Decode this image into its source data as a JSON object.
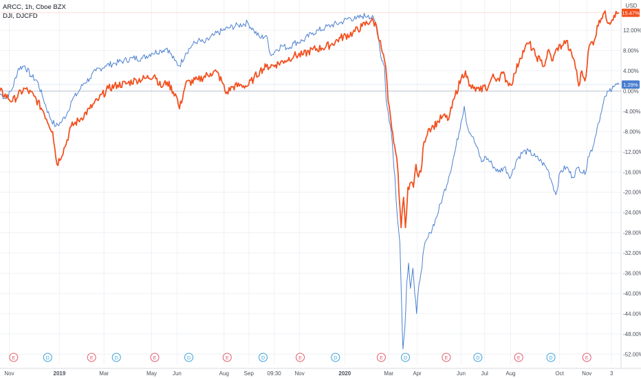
{
  "legend": {
    "main_series": "ARCC, 1h, Cboe BZX",
    "compare_series": "DJI, DJCFD"
  },
  "axis": {
    "currency": "USD"
  },
  "colors": {
    "arcc": "#f2501e",
    "dji": "#4a7fd0",
    "event_earnings": "#e05a6c",
    "event_dividend": "#3aa0d8",
    "grid": "#eef1f5",
    "axis_text": "#4a4f5a",
    "zero_line": "#b8c2d2"
  },
  "chart_data": {
    "type": "line",
    "y_unit": "%",
    "ylim": [
      -54,
      18
    ],
    "y_ticks": [
      12,
      8,
      4,
      0,
      -4,
      -8,
      -12,
      -16,
      -20,
      -24,
      -28,
      -32,
      -36,
      -40,
      -44,
      -48,
      -52
    ],
    "y_tick_labels": [
      "12.00%",
      "8.00%",
      "4.00%",
      "0.00%",
      "-4.00%",
      "-8.00%",
      "-12.00%",
      "-16.00%",
      "-20.00%",
      "-24.00%",
      "-28.00%",
      "-32.00%",
      "-36.00%",
      "-40.00%",
      "-44.00%",
      "-48.00%",
      "-52.00%"
    ],
    "x_ticks": [
      {
        "label": "Nov",
        "t": 1.5,
        "bold": false
      },
      {
        "label": "2019",
        "t": 9.6,
        "bold": true
      },
      {
        "label": "Mar",
        "t": 16.8,
        "bold": false
      },
      {
        "label": "May",
        "t": 24.5,
        "bold": false
      },
      {
        "label": "Jun",
        "t": 28.6,
        "bold": false
      },
      {
        "label": "Aug",
        "t": 36.2,
        "bold": false
      },
      {
        "label": "Sep",
        "t": 40.2,
        "bold": false
      },
      {
        "label": "09:30",
        "t": 44.3,
        "bold": false
      },
      {
        "label": "Nov",
        "t": 48.4,
        "bold": false
      },
      {
        "label": "2020",
        "t": 55.7,
        "bold": true
      },
      {
        "label": "Mar",
        "t": 62.8,
        "bold": false
      },
      {
        "label": "Apr",
        "t": 67.4,
        "bold": false
      },
      {
        "label": "Jun",
        "t": 74.5,
        "bold": false
      },
      {
        "label": "Jul",
        "t": 78.3,
        "bold": false
      },
      {
        "label": "Aug",
        "t": 82.5,
        "bold": false
      },
      {
        "label": "Oct",
        "t": 90.4,
        "bold": false
      },
      {
        "label": "Nov",
        "t": 94.8,
        "bold": false
      },
      {
        "label": "3",
        "t": 98.8,
        "bold": false
      }
    ],
    "series": [
      {
        "id": "arcc",
        "last_label": "15.47%",
        "last_value": 15.47,
        "values": [
          [
            0,
            0
          ],
          [
            2,
            -2
          ],
          [
            4,
            0.5
          ],
          [
            5.5,
            -1
          ],
          [
            7,
            -4
          ],
          [
            8.5,
            -8
          ],
          [
            9.2,
            -14.5
          ],
          [
            10.5,
            -11
          ],
          [
            11.5,
            -7
          ],
          [
            13,
            -5.5
          ],
          [
            14.5,
            -3.5
          ],
          [
            16,
            -1.5
          ],
          [
            17.5,
            0.5
          ],
          [
            19,
            1.2
          ],
          [
            20.5,
            1.5
          ],
          [
            22,
            2.2
          ],
          [
            23.5,
            2.5
          ],
          [
            25,
            3.2
          ],
          [
            26,
            0.8
          ],
          [
            27,
            1.8
          ],
          [
            28.5,
            -1
          ],
          [
            29,
            -3.5
          ],
          [
            30,
            1.5
          ],
          [
            32,
            2.2
          ],
          [
            34,
            3.5
          ],
          [
            35,
            3.8
          ],
          [
            36,
            1.5
          ],
          [
            36.5,
            -0.5
          ],
          [
            37.5,
            0.8
          ],
          [
            39,
            1.2
          ],
          [
            40,
            1
          ],
          [
            41,
            2.5
          ],
          [
            42,
            4
          ],
          [
            43,
            4.8
          ],
          [
            44.5,
            5.2
          ],
          [
            46,
            6
          ],
          [
            47.5,
            7
          ],
          [
            49,
            7.2
          ],
          [
            50.5,
            8.2
          ],
          [
            52,
            8.5
          ],
          [
            53.5,
            9.2
          ],
          [
            55,
            10.5
          ],
          [
            57,
            11.5
          ],
          [
            58.5,
            12.8
          ],
          [
            60,
            14
          ],
          [
            60.8,
            13
          ],
          [
            61.6,
            8.5
          ],
          [
            62.3,
            5
          ],
          [
            62.7,
            -2
          ],
          [
            63.3,
            -7.5
          ],
          [
            63.9,
            -12
          ],
          [
            64.3,
            -16
          ],
          [
            64.8,
            -27
          ],
          [
            65.2,
            -21
          ],
          [
            65.5,
            -27
          ],
          [
            65.9,
            -19
          ],
          [
            66.4,
            -18
          ],
          [
            66.8,
            -19
          ],
          [
            67.2,
            -14.5
          ],
          [
            67.6,
            -17
          ],
          [
            68,
            -16
          ],
          [
            68.5,
            -10
          ],
          [
            69.2,
            -7.5
          ],
          [
            70,
            -7
          ],
          [
            70.8,
            -6
          ],
          [
            71.5,
            -5
          ],
          [
            72.5,
            -5.5
          ],
          [
            73.5,
            -1
          ],
          [
            74.5,
            2.5
          ],
          [
            75.2,
            4
          ],
          [
            75.8,
            1
          ],
          [
            76.5,
            0.5
          ],
          [
            77.5,
            0
          ],
          [
            78.2,
            1
          ],
          [
            78.8,
            0.5
          ],
          [
            79.5,
            2.8
          ],
          [
            80.5,
            2.5
          ],
          [
            81.2,
            3.5
          ],
          [
            82,
            1.8
          ],
          [
            82.5,
            1.2
          ],
          [
            83.2,
            3.5
          ],
          [
            84,
            6.5
          ],
          [
            84.8,
            8.5
          ],
          [
            85.5,
            9.5
          ],
          [
            86.5,
            7
          ],
          [
            87.3,
            6
          ],
          [
            88,
            5
          ],
          [
            88.5,
            8
          ],
          [
            89.3,
            6
          ],
          [
            90,
            8.5
          ],
          [
            90.8,
            9
          ],
          [
            91.5,
            10
          ],
          [
            92,
            8
          ],
          [
            92.8,
            6
          ],
          [
            93.5,
            1
          ],
          [
            94,
            4
          ],
          [
            94.5,
            2
          ],
          [
            95.2,
            9
          ],
          [
            96,
            10
          ],
          [
            96.8,
            14
          ],
          [
            97.6,
            15.5
          ],
          [
            98.4,
            13.5
          ],
          [
            99.2,
            15
          ],
          [
            100,
            15.47
          ]
        ]
      },
      {
        "id": "dji",
        "last_label": "1.29%",
        "last_value": 1.29,
        "values": [
          [
            0,
            -0.5
          ],
          [
            1,
            -1.5
          ],
          [
            2,
            0.5
          ],
          [
            3,
            4.5
          ],
          [
            4,
            5
          ],
          [
            5,
            3
          ],
          [
            6,
            2
          ],
          [
            7,
            -1.5
          ],
          [
            8,
            -5
          ],
          [
            9,
            -7
          ],
          [
            10,
            -6
          ],
          [
            11,
            -4
          ],
          [
            11.5,
            -2
          ],
          [
            12.5,
            -0.5
          ],
          [
            13.5,
            1.5
          ],
          [
            14.5,
            2.5
          ],
          [
            15.5,
            4
          ],
          [
            17,
            5
          ],
          [
            18.5,
            5.5
          ],
          [
            20,
            6
          ],
          [
            21.5,
            6.5
          ],
          [
            23,
            6.5
          ],
          [
            24.5,
            7.5
          ],
          [
            26,
            8
          ],
          [
            27,
            8.5
          ],
          [
            28.2,
            6
          ],
          [
            29,
            5
          ],
          [
            30,
            7.5
          ],
          [
            31,
            9
          ],
          [
            32,
            10
          ],
          [
            33,
            9.5
          ],
          [
            34.5,
            11
          ],
          [
            36,
            12
          ],
          [
            37,
            12.5
          ],
          [
            38.5,
            13
          ],
          [
            40,
            13.5
          ],
          [
            41,
            12
          ],
          [
            42,
            10.5
          ],
          [
            43,
            11
          ],
          [
            43.8,
            7
          ],
          [
            44.5,
            8
          ],
          [
            45.5,
            9
          ],
          [
            46.5,
            8.5
          ],
          [
            47.5,
            9.5
          ],
          [
            49,
            10
          ],
          [
            50.5,
            11.5
          ],
          [
            51.5,
            12
          ],
          [
            52.5,
            12.5
          ],
          [
            53.5,
            13
          ],
          [
            55,
            13.5
          ],
          [
            56.5,
            14.5
          ],
          [
            57.5,
            14.2
          ],
          [
            58.5,
            14.8
          ],
          [
            59.5,
            15
          ],
          [
            60.5,
            14
          ],
          [
            61.1,
            11
          ],
          [
            61.5,
            7
          ],
          [
            62.1,
            5
          ],
          [
            62.4,
            -2
          ],
          [
            63.2,
            -8
          ],
          [
            63.8,
            -17
          ],
          [
            64.2,
            -25
          ],
          [
            64.6,
            -30
          ],
          [
            64.9,
            -43
          ],
          [
            65.1,
            -51
          ],
          [
            65.4,
            -47
          ],
          [
            65.7,
            -38
          ],
          [
            66,
            -34
          ],
          [
            66.3,
            -39
          ],
          [
            66.7,
            -35
          ],
          [
            67,
            -40
          ],
          [
            67.3,
            -44
          ],
          [
            67.7,
            -38
          ],
          [
            68,
            -36
          ],
          [
            68.5,
            -31
          ],
          [
            69.5,
            -28
          ],
          [
            70.5,
            -25
          ],
          [
            71.5,
            -21
          ],
          [
            72.5,
            -17
          ],
          [
            73.5,
            -12
          ],
          [
            74.5,
            -6
          ],
          [
            75,
            -3
          ],
          [
            75.5,
            -7
          ],
          [
            76.3,
            -9
          ],
          [
            77,
            -11
          ],
          [
            77.8,
            -14
          ],
          [
            78.5,
            -13
          ],
          [
            79.5,
            -14.5
          ],
          [
            80.5,
            -16
          ],
          [
            81.5,
            -15
          ],
          [
            82.5,
            -17
          ],
          [
            83.5,
            -13.5
          ],
          [
            84.5,
            -12
          ],
          [
            85.5,
            -12
          ],
          [
            86.5,
            -13
          ],
          [
            87.5,
            -14
          ],
          [
            88.5,
            -15.5
          ],
          [
            89.3,
            -18.5
          ],
          [
            89.8,
            -20.5
          ],
          [
            90.5,
            -16
          ],
          [
            91.5,
            -15
          ],
          [
            92.5,
            -17
          ],
          [
            93.5,
            -15
          ],
          [
            94.5,
            -16.5
          ],
          [
            95,
            -13
          ],
          [
            95.8,
            -11
          ],
          [
            96.5,
            -7
          ],
          [
            97.2,
            -4
          ],
          [
            97.8,
            -1
          ],
          [
            98.4,
            0
          ],
          [
            99,
            1
          ],
          [
            100,
            1.29
          ]
        ]
      }
    ],
    "events": [
      {
        "type": "E",
        "t": 2.2
      },
      {
        "type": "D",
        "t": 7.7
      },
      {
        "type": "E",
        "t": 14.8
      },
      {
        "type": "D",
        "t": 18.8
      },
      {
        "type": "E",
        "t": 25.0
      },
      {
        "type": "D",
        "t": 30.5
      },
      {
        "type": "E",
        "t": 36.7
      },
      {
        "type": "D",
        "t": 42.5
      },
      {
        "type": "E",
        "t": 48.5
      },
      {
        "type": "D",
        "t": 54.2
      },
      {
        "type": "E",
        "t": 61.6
      },
      {
        "type": "D",
        "t": 65.5
      },
      {
        "type": "E",
        "t": 72.1
      },
      {
        "type": "D",
        "t": 77.2
      },
      {
        "type": "E",
        "t": 83.8
      },
      {
        "type": "D",
        "t": 89.0
      },
      {
        "type": "E",
        "t": 94.8
      }
    ]
  }
}
